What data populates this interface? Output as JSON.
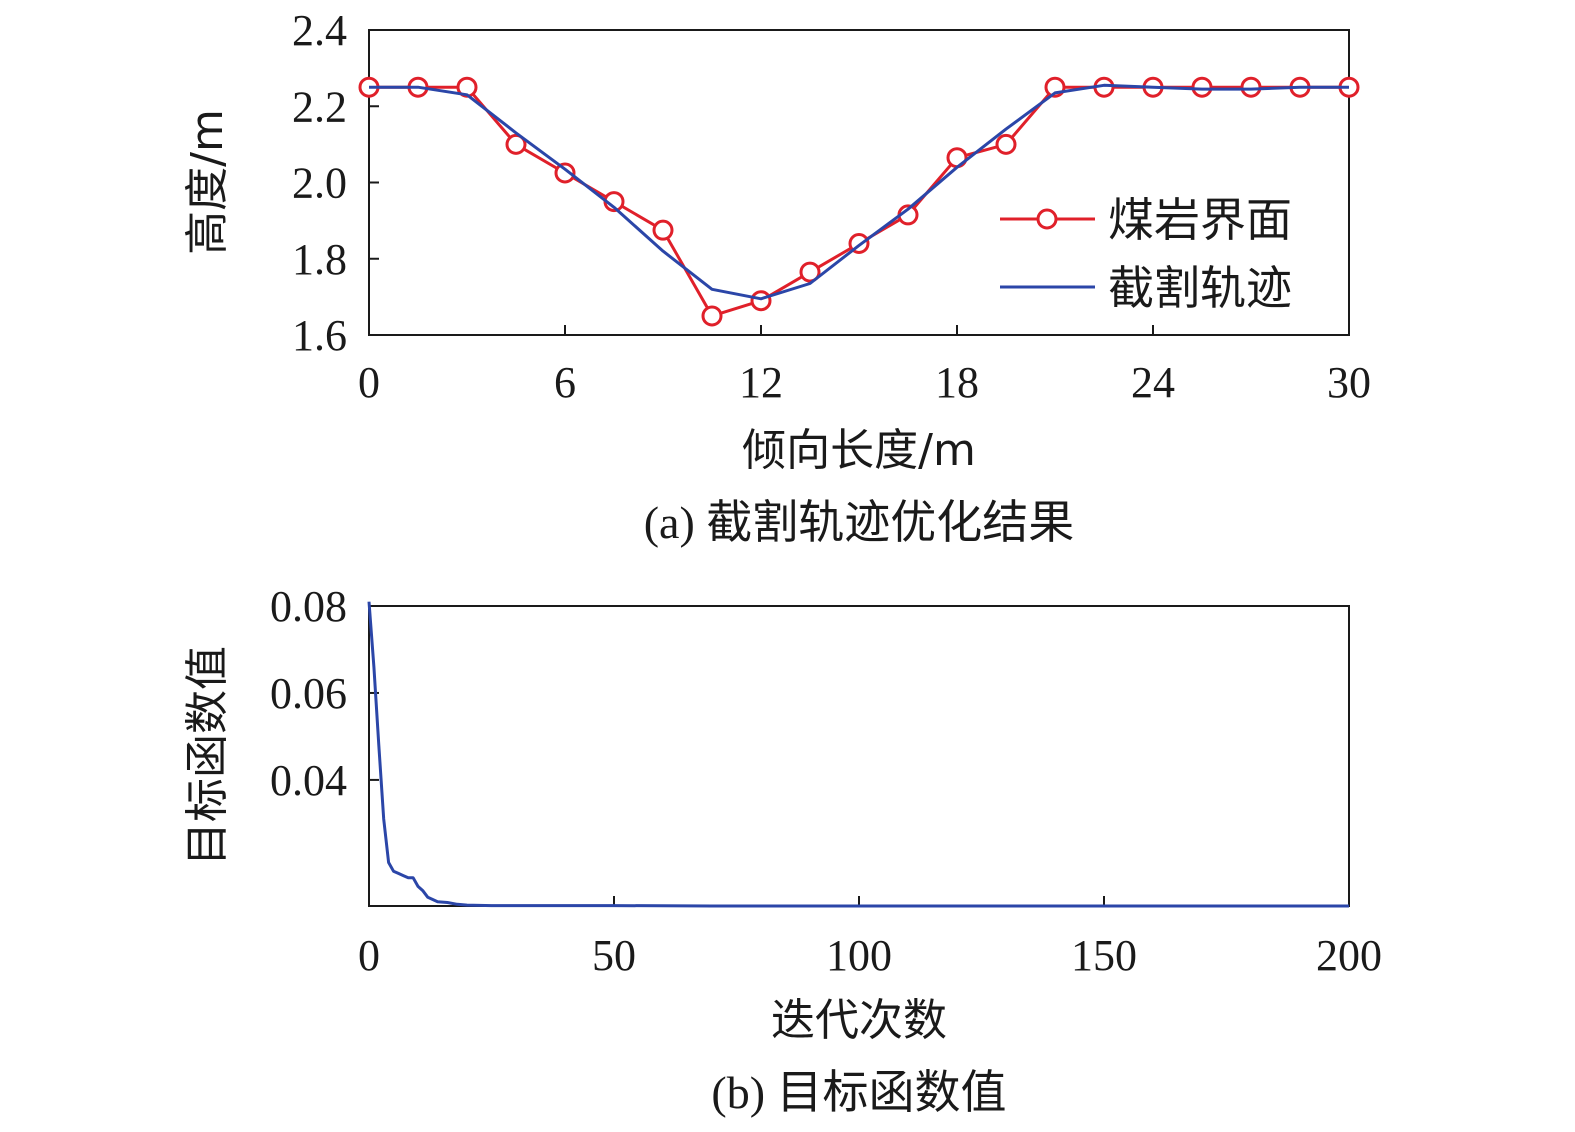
{
  "colors": {
    "red_series": "#e0202a",
    "blue_series": "#2b46a8",
    "axis": "#1a1a1a"
  },
  "chart_data": [
    {
      "type": "line",
      "caption": "(a) 截割轨迹优化结果",
      "xlabel": "倾向长度/m",
      "ylabel": "高度/m",
      "xlim": [
        0,
        30
      ],
      "ylim": [
        1.6,
        2.4
      ],
      "xticks": [
        "0",
        "6",
        "12",
        "18",
        "24",
        "30"
      ],
      "yticks": [
        "1.6",
        "1.8",
        "2.0",
        "2.2",
        "2.4"
      ],
      "legend_position": "right",
      "series": [
        {
          "name": "煤岩界面",
          "marker": "circle",
          "x": [
            0,
            1.5,
            3,
            4.5,
            6,
            7.5,
            9,
            10.5,
            12,
            13.5,
            15,
            16.5,
            18,
            19.5,
            21,
            22.5,
            24,
            25.5,
            27,
            28.5,
            30
          ],
          "y": [
            2.25,
            2.25,
            2.25,
            2.1,
            2.025,
            1.95,
            1.875,
            1.65,
            1.69,
            1.765,
            1.84,
            1.915,
            2.065,
            2.1,
            2.25,
            2.25,
            2.25,
            2.25,
            2.25,
            2.25,
            2.25
          ]
        },
        {
          "name": "截割轨迹",
          "marker": "none",
          "x": [
            0,
            1.5,
            3,
            4.5,
            6,
            7.5,
            9,
            10.5,
            12,
            13.5,
            15,
            16.5,
            18,
            19.5,
            21,
            22.5,
            24,
            25.5,
            27,
            28.5,
            30
          ],
          "y": [
            2.25,
            2.25,
            2.23,
            2.13,
            2.035,
            1.935,
            1.82,
            1.72,
            1.695,
            1.735,
            1.835,
            1.93,
            2.04,
            2.14,
            2.235,
            2.255,
            2.25,
            2.245,
            2.245,
            2.25,
            2.25
          ]
        }
      ]
    },
    {
      "type": "line",
      "caption": "(b) 目标函数值",
      "xlabel": "迭代次数",
      "ylabel": "目标函数值",
      "xlim": [
        0,
        200
      ],
      "ylim": [
        0.011,
        0.08
      ],
      "xticks": [
        "0",
        "50",
        "100",
        "150",
        "200"
      ],
      "yticks": [
        "0.04",
        "0.06",
        "0.08"
      ],
      "ytick_values": [
        0.04,
        0.06,
        0.08
      ],
      "series": [
        {
          "x": [
            0,
            1,
            2,
            3,
            4,
            5,
            6,
            7,
            8,
            9,
            10,
            11,
            12,
            14,
            16,
            18,
            20,
            25,
            30,
            40,
            50,
            70,
            100,
            150,
            200
          ],
          "y": [
            0.081,
            0.066,
            0.048,
            0.031,
            0.021,
            0.019,
            0.0185,
            0.018,
            0.0175,
            0.0175,
            0.0155,
            0.0145,
            0.013,
            0.012,
            0.0118,
            0.0114,
            0.0112,
            0.0111,
            0.0111,
            0.0111,
            0.0111,
            0.011,
            0.011,
            0.011,
            0.011
          ]
        }
      ]
    }
  ]
}
